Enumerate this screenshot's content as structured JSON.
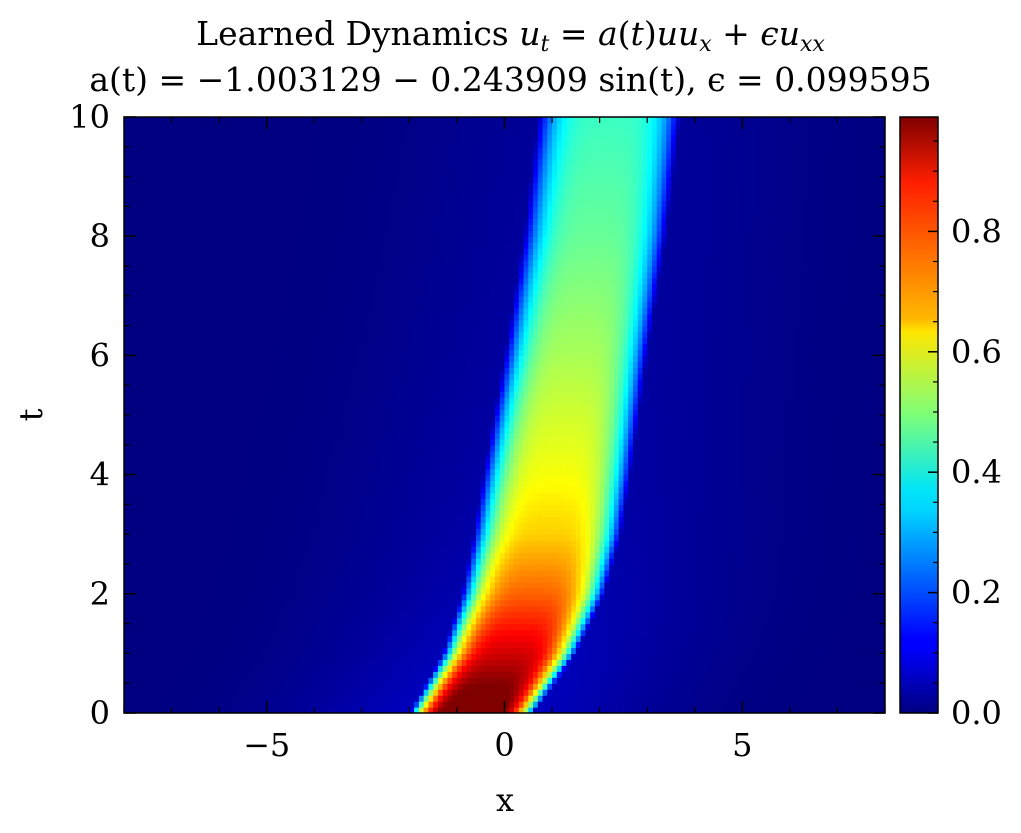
{
  "title": {
    "line1_prefix": "Learned Dynamics ",
    "line1_equation": "u_t = a(t) u u_x + ϵ u_xx",
    "line2": "a(t) = −1.003129 − 0.243909 sin(t), ϵ = 0.099595"
  },
  "chart_data": {
    "type": "heatmap",
    "title": "Learned Dynamics u_t = a(t)uu_x + ϵu_xx  a(t) = −1.003129 − 0.243909 sin(t), ϵ = 0.099595",
    "xlabel": "x",
    "ylabel": "t",
    "xlim": [
      -8,
      8
    ],
    "ylim": [
      0,
      10
    ],
    "xticks": [
      -5,
      0,
      5
    ],
    "xtick_labels": [
      "−5",
      "0",
      "5"
    ],
    "yticks": [
      0,
      2,
      4,
      6,
      8,
      10
    ],
    "ytick_labels": [
      "0",
      "2",
      "4",
      "6",
      "8",
      "10"
    ],
    "colormap": "jet",
    "color_range": [
      0,
      0.99
    ],
    "colorbar_ticks": [
      0.0,
      0.2,
      0.4,
      0.6,
      0.8
    ],
    "colorbar_tick_labels": [
      "0.0",
      "0.2",
      "0.4",
      "0.6",
      "0.8"
    ],
    "profile_rows": [
      {
        "t": 0.0,
        "center": -0.7,
        "peak": 0.99,
        "halfwidth": 1.3
      },
      {
        "t": 0.5,
        "center": -0.3,
        "peak": 0.92,
        "halfwidth": 1.35
      },
      {
        "t": 1.0,
        "center": 0.1,
        "peak": 0.85,
        "halfwidth": 1.4
      },
      {
        "t": 2.0,
        "center": 0.6,
        "peak": 0.72,
        "halfwidth": 1.5
      },
      {
        "t": 3.0,
        "center": 0.9,
        "peak": 0.62,
        "halfwidth": 1.55
      },
      {
        "t": 4.0,
        "center": 1.1,
        "peak": 0.57,
        "halfwidth": 1.55
      },
      {
        "t": 6.0,
        "center": 1.5,
        "peak": 0.5,
        "halfwidth": 1.5
      },
      {
        "t": 8.0,
        "center": 1.9,
        "peak": 0.44,
        "halfwidth": 1.5
      },
      {
        "t": 10.0,
        "center": 2.2,
        "peak": 0.4,
        "halfwidth": 1.5
      }
    ]
  }
}
